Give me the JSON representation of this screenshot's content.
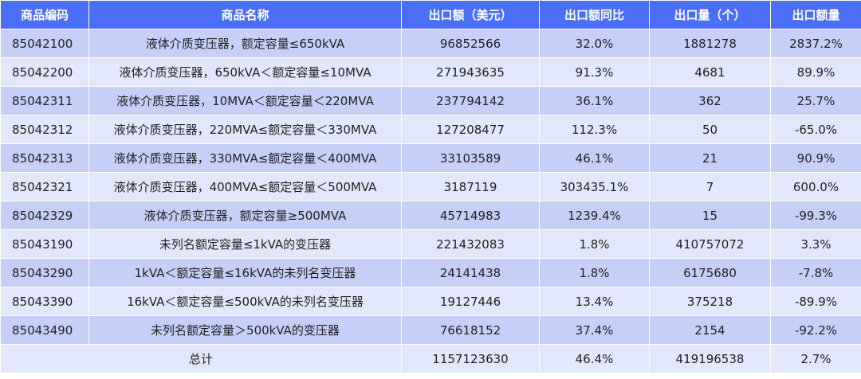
{
  "headers": [
    "商品编码",
    "商品名称",
    "出口额（美元）",
    "出口额同比",
    "出口量（个）",
    "出口额量"
  ],
  "rows": [
    {
      "code": "85042100",
      "name": "液体介质变压器，额定容量≤650kVA",
      "value": "96852566",
      "yoy": "32.0%",
      "qty": "1881278",
      "qty_yoy": "2837.2%"
    },
    {
      "code": "85042200",
      "name": "液体介质变压器，650kVA＜额定容量≤10MVA",
      "value": "271943635",
      "yoy": "91.3%",
      "qty": "4681",
      "qty_yoy": "89.9%"
    },
    {
      "code": "85042311",
      "name": "液体介质变压器，10MVA＜额定容量＜220MVA",
      "value": "237794142",
      "yoy": "36.1%",
      "qty": "362",
      "qty_yoy": "25.7%"
    },
    {
      "code": "85042312",
      "name": "液体介质变压器，220MVA≤额定容量＜330MVA",
      "value": "127208477",
      "yoy": "112.3%",
      "qty": "50",
      "qty_yoy": "-65.0%"
    },
    {
      "code": "85042313",
      "name": "液体介质变压器，330MVA≤额定容量＜400MVA",
      "value": "33103589",
      "yoy": "46.1%",
      "qty": "21",
      "qty_yoy": "90.9%"
    },
    {
      "code": "85042321",
      "name": "液体介质变压器，400MVA≤额定容量＜500MVA",
      "value": "3187119",
      "yoy": "303435.1%",
      "qty": "7",
      "qty_yoy": "600.0%"
    },
    {
      "code": "85042329",
      "name": "液体介质变压器，额定容量≥500MVA",
      "value": "45714983",
      "yoy": "1239.4%",
      "qty": "15",
      "qty_yoy": "-99.3%"
    },
    {
      "code": "85043190",
      "name": "未列名额定容量≤1kVA的变压器",
      "value": "221432083",
      "yoy": "1.8%",
      "qty": "410757072",
      "qty_yoy": "3.3%"
    },
    {
      "code": "85043290",
      "name": "1kVA＜额定容量≤16kVA的未列名变压器",
      "value": "24141438",
      "yoy": "1.8%",
      "qty": "6175680",
      "qty_yoy": "-7.8%"
    },
    {
      "code": "85043390",
      "name": "16kVA＜额定容量≤500kVA的未列名变压器",
      "value": "19127446",
      "yoy": "13.4%",
      "qty": "375218",
      "qty_yoy": "-89.9%"
    },
    {
      "code": "85043490",
      "name": "未列名额定容量＞500kVA的变压器",
      "value": "76618152",
      "yoy": "37.4%",
      "qty": "2154",
      "qty_yoy": "-92.2%"
    }
  ],
  "total": {
    "label": "总计",
    "value": "1157123630",
    "yoy": "46.4%",
    "qty": "419196538",
    "qty_yoy": "2.7%"
  },
  "colors": {
    "header_bg": "#4a6ef5",
    "row_dark": "#c6cff6",
    "row_light": "#e2e7fb"
  }
}
